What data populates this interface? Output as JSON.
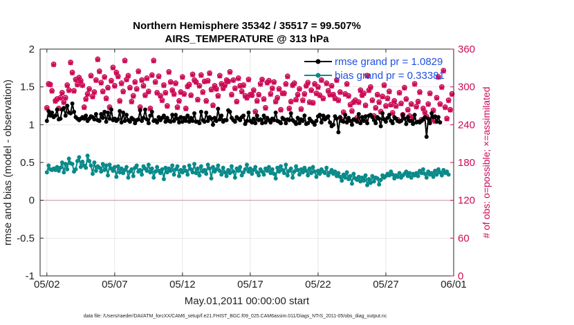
{
  "chart_data": {
    "type": "line",
    "title": "Northern Hemisphere 35342 / 35517 = 99.507%",
    "subtitle": "AIRS_TEMPERATURE @ 313 hPa",
    "xlabel": "May.01,2011 00:00:00 start",
    "ylabel": "rmse and bias (model - observation)",
    "y2label": "# of obs: o=possible; ×=assimilated",
    "footnote": "data file: /Users/raeder/DAI/ATM_forcXX/CAM6_setup/f.e21.FHIST_BGC.f09_025.CAM6assim.011/Diags_NTrS_2011-05/obs_diag_output.nc",
    "x_tick_labels": [
      "05/02",
      "05/07",
      "05/12",
      "05/17",
      "05/22",
      "05/27",
      "06/01"
    ],
    "x_tick_days": [
      1,
      6,
      11,
      16,
      21,
      26,
      31
    ],
    "xlim_days": [
      0.5,
      31.0
    ],
    "y_tick_labels": [
      "-1",
      "-0.5",
      "0",
      "0.5",
      "1",
      "1.5",
      "2"
    ],
    "ylim": [
      -1,
      2
    ],
    "y2_tick_labels": [
      "0",
      "60",
      "120",
      "180",
      "240",
      "300",
      "360"
    ],
    "y2lim": [
      0,
      360
    ],
    "grid": true,
    "legend_position": "top-right",
    "zero_line": 0,
    "colors": {
      "rmse": "#000000",
      "bias": "#0a8a8a",
      "obs_possible": "#cc0a55",
      "obs_assimilated": "#cc0a55",
      "zero_line": "#c9a0a8",
      "legend_text": "#1f4fe0",
      "right_axis": "#cc0a55"
    },
    "series": [
      {
        "name": "rmse grand pr = 1.0829",
        "axis": "left",
        "values": [
          1.05,
          1.18,
          1.12,
          1.16,
          1.1,
          1.12,
          1.2,
          1.07,
          1.08,
          1.2,
          1.22,
          1.12,
          1.25,
          1.16,
          1.15,
          1.28,
          1.17,
          1.1,
          1.08,
          1.06,
          1.08,
          1.1,
          1.08,
          1.12,
          1.05,
          1.08,
          1.11,
          1.1,
          1.07,
          1.14,
          1.06,
          1.05,
          1.14,
          1.09,
          1.17,
          1.04,
          1.16,
          1.08,
          1.2,
          1.06,
          1.08,
          1.05,
          1.07,
          1.18,
          1.03,
          1.16,
          1.05,
          1.13,
          1.06,
          1.04,
          1.09,
          1.07,
          1.02,
          1.06,
          1.07,
          1.19,
          1.05,
          1.09,
          1.2,
          1.07,
          1.02,
          1.12,
          1.17,
          1.05,
          1.06,
          1.03,
          1.1,
          1.06,
          1.09,
          1.12,
          1.04,
          1.09,
          1.05,
          1.04,
          1.13,
          1.05,
          1.13,
          1.08,
          1.03,
          1.1,
          1.04,
          1.09,
          1.05,
          1.12,
          1.04,
          1.09,
          1.05,
          1.15,
          1.04,
          1.04,
          1.02,
          1.17,
          1.06,
          1.04,
          1.16,
          1.05,
          1.1,
          1.08,
          1.0,
          1.09,
          1.05,
          1.21,
          1.07,
          1.12,
          1.04,
          1.06,
          1.06,
          1.19,
          1.17,
          1.09,
          1.06,
          1.04,
          1.1,
          1.08,
          1.06,
          1.1,
          1.12,
          1.01,
          1.05,
          1.16,
          1.05,
          1.03,
          1.08,
          1.02,
          1.12,
          1.06,
          1.07,
          1.02,
          1.12,
          1.03,
          1.09,
          1.06,
          1.03,
          1.08,
          1.06,
          1.16,
          1.05,
          1.04,
          1.02,
          1.09,
          1.07,
          1.02,
          1.07,
          1.06,
          1.15,
          1.06,
          1.04,
          1.01,
          1.09,
          1.02,
          1.07,
          1.05,
          1.12,
          1.01,
          1.02,
          1.08,
          1.05,
          1.03,
          1.0,
          1.05,
          1.11,
          1.13,
          1.03,
          1.12,
          1.07,
          1.09,
          1.11,
          1.03,
          0.98,
          1.0,
          1.11,
          1.08,
          0.9,
          1.1,
          1.05,
          1.04,
          1.13,
          1.03,
          1.09,
          1.05,
          1.0,
          1.07,
          1.06,
          1.04,
          1.14,
          1.02,
          1.1,
          1.05,
          1.11,
          1.02,
          1.12,
          1.13,
          1.1,
          1.06,
          1.02,
          1.1,
          1.08,
          0.98,
          1.15,
          1.07,
          1.04,
          1.09,
          1.13,
          1.05,
          1.02,
          1.1,
          1.08,
          1.05,
          1.04,
          1.05,
          1.13,
          1.08,
          1.01,
          1.1,
          1.05,
          1.05,
          1.01,
          1.13,
          1.03,
          1.04,
          1.03,
          1.05,
          1.07,
          1.1,
          0.84,
          1.08,
          1.02,
          1.15,
          1.1,
          1.11,
          1.04,
          1.1,
          1.03
        ]
      },
      {
        "name": "bias grand pr = 0.33381",
        "axis": "left",
        "values": [
          0.37,
          0.46,
          0.41,
          0.4,
          0.42,
          0.4,
          0.44,
          0.39,
          0.43,
          0.5,
          0.37,
          0.48,
          0.41,
          0.55,
          0.49,
          0.48,
          0.38,
          0.41,
          0.52,
          0.57,
          0.44,
          0.51,
          0.46,
          0.43,
          0.59,
          0.52,
          0.46,
          0.35,
          0.5,
          0.39,
          0.45,
          0.43,
          0.38,
          0.48,
          0.4,
          0.46,
          0.33,
          0.47,
          0.42,
          0.39,
          0.44,
          0.31,
          0.45,
          0.37,
          0.42,
          0.36,
          0.4,
          0.44,
          0.3,
          0.38,
          0.41,
          0.32,
          0.43,
          0.46,
          0.38,
          0.4,
          0.34,
          0.45,
          0.42,
          0.39,
          0.47,
          0.37,
          0.42,
          0.3,
          0.38,
          0.44,
          0.39,
          0.36,
          0.41,
          0.28,
          0.43,
          0.37,
          0.42,
          0.39,
          0.46,
          0.34,
          0.41,
          0.45,
          0.32,
          0.4,
          0.37,
          0.44,
          0.39,
          0.34,
          0.46,
          0.41,
          0.37,
          0.48,
          0.36,
          0.42,
          0.33,
          0.45,
          0.38,
          0.4,
          0.35,
          0.47,
          0.42,
          0.29,
          0.44,
          0.38,
          0.41,
          0.46,
          0.39,
          0.34,
          0.43,
          0.37,
          0.32,
          0.4,
          0.36,
          0.45,
          0.38,
          0.3,
          0.42,
          0.39,
          0.44,
          0.33,
          0.37,
          0.41,
          0.47,
          0.38,
          0.42,
          0.35,
          0.4,
          0.44,
          0.37,
          0.33,
          0.41,
          0.38,
          0.34,
          0.42,
          0.39,
          0.44,
          0.36,
          0.41,
          0.35,
          0.29,
          0.43,
          0.38,
          0.45,
          0.4,
          0.36,
          0.47,
          0.33,
          0.39,
          0.42,
          0.3,
          0.38,
          0.45,
          0.4,
          0.34,
          0.41,
          0.37,
          0.43,
          0.39,
          0.33,
          0.42,
          0.36,
          0.44,
          0.38,
          0.31,
          0.39,
          0.35,
          0.41,
          0.38,
          0.36,
          0.43,
          0.33,
          0.37,
          0.4,
          0.35,
          0.38,
          0.32,
          0.36,
          0.31,
          0.26,
          0.34,
          0.3,
          0.37,
          0.28,
          0.32,
          0.22,
          0.35,
          0.29,
          0.27,
          0.31,
          0.25,
          0.3,
          0.26,
          0.33,
          0.2,
          0.28,
          0.23,
          0.32,
          0.25,
          0.3,
          0.29,
          0.21,
          0.27,
          0.33,
          0.3,
          0.32,
          0.35,
          0.33,
          0.38,
          0.34,
          0.29,
          0.33,
          0.31,
          0.36,
          0.3,
          0.33,
          0.35,
          0.38,
          0.32,
          0.36,
          0.3,
          0.35,
          0.33,
          0.36,
          0.32,
          0.39,
          0.36,
          0.41,
          0.35,
          0.3,
          0.38,
          0.34,
          0.36,
          0.31,
          0.39,
          0.34,
          0.41,
          0.37,
          0.33,
          0.4,
          0.36,
          0.38,
          0.34
        ]
      },
      {
        "name": "obs possible",
        "axis": "right",
        "marker": "o",
        "values": [
          267,
          305,
          304,
          294,
          336,
          278,
          281,
          266,
          283,
          291,
          276,
          283,
          303,
          295,
          339,
          323,
          294,
          312,
          304,
          315,
          310,
          303,
          268,
          281,
          289,
          297,
          318,
          285,
          292,
          311,
          344,
          325,
          307,
          293,
          316,
          282,
          299,
          268,
          310,
          331,
          302,
          323,
          317,
          278,
          306,
          293,
          342,
          312,
          318,
          299,
          277,
          286,
          308,
          297,
          325,
          268,
          311,
          302,
          287,
          314,
          293,
          266,
          319,
          342,
          308,
          291,
          317,
          286,
          279,
          303,
          291,
          270,
          324,
          308,
          295,
          289,
          306,
          268,
          278,
          292,
          316,
          289,
          266,
          301,
          304,
          287,
          320,
          311,
          308,
          280,
          302,
          319,
          292,
          309,
          278,
          310,
          322,
          296,
          271,
          302,
          297,
          286,
          318,
          305,
          298,
          303,
          311,
          309,
          324,
          288,
          311,
          298,
          277,
          314,
          302,
          293,
          303,
          286,
          283,
          312,
          288,
          287,
          295,
          261,
          278,
          288,
          305,
          312,
          281,
          267,
          307,
          310,
          289,
          298,
          308,
          277,
          283,
          297,
          264,
          290,
          290,
          305,
          317,
          266,
          277,
          303,
          306,
          280,
          288,
          297,
          265,
          279,
          289,
          302,
          307,
          276,
          295,
          275,
          305,
          290,
          300,
          287,
          311,
          282,
          251,
          306,
          294,
          288,
          302,
          288,
          282,
          311,
          279,
          292,
          248,
          260,
          289,
          305,
          286,
          272,
          262,
          276,
          279,
          251,
          276,
          295,
          287,
          290,
          271,
          318,
          295,
          300,
          279,
          254,
          267,
          288,
          276,
          261,
          285,
          303,
          270,
          282,
          293,
          272,
          259,
          278,
          270,
          248,
          291,
          274,
          256,
          299,
          281,
          264,
          254,
          273,
          252,
          305,
          269,
          277,
          292,
          248,
          266,
          260,
          253,
          273,
          290,
          248,
          263,
          246,
          283,
          316,
          273,
          300,
          326,
          268,
          250,
          279,
          264,
          289
        ]
      },
      {
        "name": "obs assimilated",
        "axis": "right",
        "marker": "x",
        "values": [
          266,
          304,
          303,
          293,
          335,
          277,
          280,
          265,
          282,
          290,
          275,
          282,
          302,
          294,
          338,
          322,
          293,
          311,
          303,
          314,
          309,
          302,
          267,
          280,
          288,
          296,
          317,
          284,
          291,
          310,
          343,
          324,
          306,
          292,
          315,
          281,
          298,
          267,
          309,
          330,
          301,
          322,
          316,
          277,
          305,
          292,
          341,
          311,
          317,
          298,
          276,
          285,
          307,
          296,
          324,
          267,
          310,
          301,
          286,
          313,
          292,
          265,
          318,
          341,
          307,
          290,
          316,
          285,
          278,
          302,
          290,
          269,
          323,
          307,
          294,
          288,
          305,
          267,
          277,
          291,
          315,
          288,
          265,
          300,
          303,
          286,
          319,
          310,
          307,
          279,
          301,
          318,
          291,
          308,
          277,
          309,
          321,
          295,
          270,
          301,
          296,
          285,
          317,
          304,
          297,
          302,
          310,
          308,
          323,
          287,
          310,
          297,
          276,
          313,
          301,
          292,
          302,
          285,
          282,
          311,
          287,
          286,
          294,
          260,
          277,
          287,
          304,
          311,
          280,
          266,
          306,
          309,
          288,
          297,
          307,
          276,
          282,
          296,
          263,
          289,
          289,
          304,
          316,
          265,
          276,
          302,
          305,
          279,
          287,
          296,
          264,
          278,
          288,
          301,
          306,
          275,
          294,
          274,
          304,
          289,
          299,
          286,
          310,
          281,
          250,
          305,
          293,
          287,
          301,
          287,
          281,
          310,
          278,
          291,
          247,
          259,
          288,
          304,
          285,
          271,
          261,
          275,
          278,
          250,
          275,
          294,
          286,
          289,
          270,
          317,
          294,
          299,
          278,
          253,
          266,
          287,
          275,
          260,
          284,
          302,
          269,
          281,
          292,
          271,
          258,
          277,
          269,
          247,
          290,
          273,
          255,
          298,
          280,
          263,
          253,
          272,
          251,
          304,
          268,
          276,
          291,
          247,
          265,
          259,
          252,
          272,
          289,
          247,
          262,
          245,
          282,
          315,
          272,
          299,
          325,
          267,
          249,
          278,
          263,
          288
        ]
      }
    ]
  }
}
